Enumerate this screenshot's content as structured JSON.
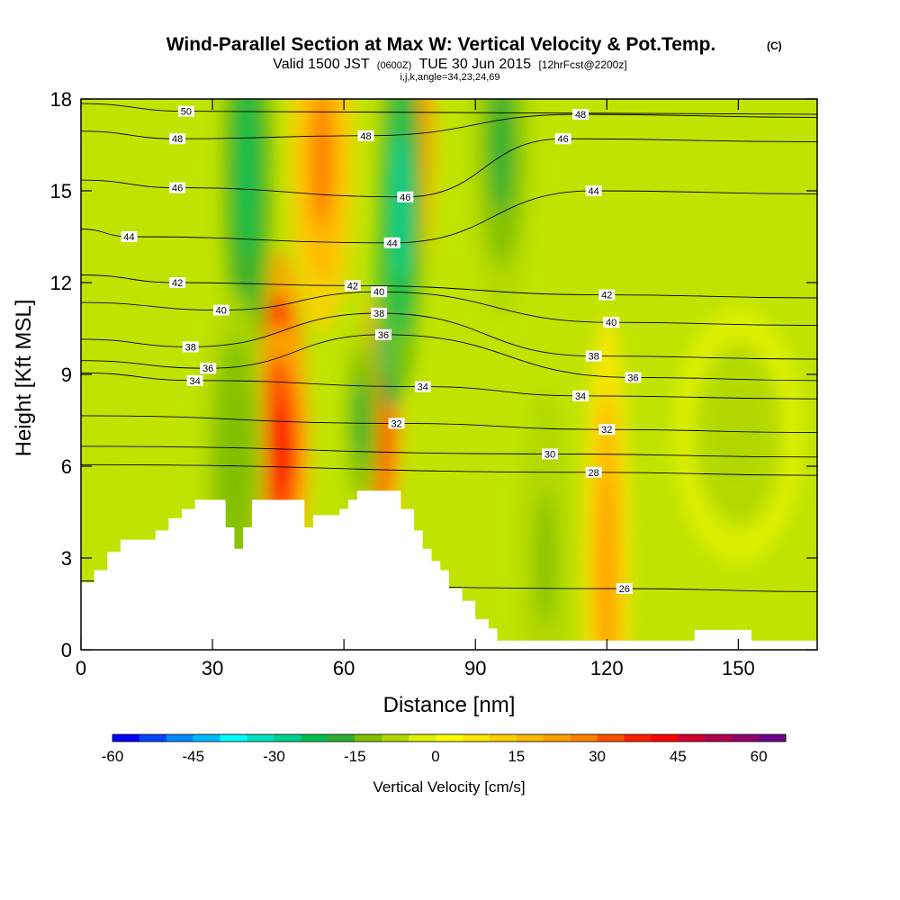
{
  "chart_data": {
    "type": "heatmap",
    "title": "Wind-Parallel Section at Max W: Vertical Velocity & Pot.Temp.",
    "title_mark": "(C)",
    "subtitle_prefix": "Valid 1500 JST",
    "subtitle_zulu": "(0600Z)",
    "subtitle_date": "TUE 30 Jun 2015",
    "subtitle_fcst": "[12hrFcst@2200z]",
    "subtitle_indices": "i,j,k,angle=34,23,24,69",
    "xlabel": "Distance [nm]",
    "ylabel": "Height [Kft MSL]",
    "xlim": [
      0,
      168
    ],
    "ylim": [
      0,
      18
    ],
    "x_ticks": [
      0,
      30,
      60,
      90,
      120,
      150
    ],
    "y_ticks": [
      0,
      3,
      6,
      9,
      12,
      15,
      18
    ],
    "colorbar": {
      "label": "Vertical Velocity [cm/s]",
      "range": [
        -60,
        65
      ],
      "step": 5,
      "tick_values": [
        -60,
        -45,
        -30,
        -15,
        0,
        15,
        30,
        45,
        60
      ],
      "colors": [
        "#0000ff",
        "#0044ff",
        "#0088ff",
        "#00bbff",
        "#00ffff",
        "#00e0c0",
        "#00d090",
        "#00c050",
        "#30b030",
        "#80c000",
        "#b0d800",
        "#e0f000",
        "#ffff00",
        "#ffe800",
        "#ffd000",
        "#ffb800",
        "#ffa000",
        "#ff8000",
        "#ff5000",
        "#ff2000",
        "#ff0000",
        "#d00030",
        "#b00050",
        "#900070",
        "#700090"
      ]
    },
    "theta_contours": {
      "units": "C",
      "labels": [
        {
          "value": 50,
          "x": 24,
          "y": 17.6
        },
        {
          "value": 48,
          "x": 22,
          "y": 16.7
        },
        {
          "value": 48,
          "x": 114,
          "y": 17.5
        },
        {
          "value": 48,
          "x": 65,
          "y": 16.8
        },
        {
          "value": 46,
          "x": 22,
          "y": 15.1
        },
        {
          "value": 46,
          "x": 110,
          "y": 16.7
        },
        {
          "value": 46,
          "x": 74,
          "y": 14.8
        },
        {
          "value": 44,
          "x": 11,
          "y": 13.5
        },
        {
          "value": 44,
          "x": 117,
          "y": 15.0
        },
        {
          "value": 44,
          "x": 71,
          "y": 13.3
        },
        {
          "value": 42,
          "x": 22,
          "y": 12.0
        },
        {
          "value": 42,
          "x": 62,
          "y": 11.9
        },
        {
          "value": 42,
          "x": 120,
          "y": 11.6
        },
        {
          "value": 40,
          "x": 32,
          "y": 11.1
        },
        {
          "value": 40,
          "x": 68,
          "y": 11.7
        },
        {
          "value": 40,
          "x": 121,
          "y": 10.7
        },
        {
          "value": 38,
          "x": 25,
          "y": 9.9
        },
        {
          "value": 38,
          "x": 68,
          "y": 11.0
        },
        {
          "value": 38,
          "x": 117,
          "y": 9.6
        },
        {
          "value": 36,
          "x": 29,
          "y": 9.2
        },
        {
          "value": 36,
          "x": 69,
          "y": 10.3
        },
        {
          "value": 36,
          "x": 126,
          "y": 8.9
        },
        {
          "value": 34,
          "x": 26,
          "y": 8.8
        },
        {
          "value": 34,
          "x": 78,
          "y": 8.6
        },
        {
          "value": 34,
          "x": 114,
          "y": 8.3
        },
        {
          "value": 32,
          "x": 72,
          "y": 7.4
        },
        {
          "value": 32,
          "x": 120,
          "y": 7.2
        },
        {
          "value": 30,
          "x": 107,
          "y": 6.4
        },
        {
          "value": 28,
          "x": 117,
          "y": 5.8
        },
        {
          "value": 26,
          "x": 124,
          "y": 2.0
        }
      ]
    },
    "terrain_height_kft": [
      {
        "x": 0,
        "h": 2.2
      },
      {
        "x": 3,
        "h": 2.6
      },
      {
        "x": 6,
        "h": 3.2
      },
      {
        "x": 9,
        "h": 3.6
      },
      {
        "x": 14,
        "h": 3.6
      },
      {
        "x": 17,
        "h": 3.9
      },
      {
        "x": 20,
        "h": 4.3
      },
      {
        "x": 23,
        "h": 4.6
      },
      {
        "x": 26,
        "h": 4.9
      },
      {
        "x": 31,
        "h": 4.9
      },
      {
        "x": 33,
        "h": 4.0
      },
      {
        "x": 35,
        "h": 3.3
      },
      {
        "x": 37,
        "h": 4.0
      },
      {
        "x": 39,
        "h": 4.9
      },
      {
        "x": 49,
        "h": 4.9
      },
      {
        "x": 51,
        "h": 4.0
      },
      {
        "x": 53,
        "h": 4.4
      },
      {
        "x": 56,
        "h": 4.4
      },
      {
        "x": 59,
        "h": 4.6
      },
      {
        "x": 61,
        "h": 4.9
      },
      {
        "x": 63,
        "h": 5.2
      },
      {
        "x": 70,
        "h": 5.2
      },
      {
        "x": 73,
        "h": 4.6
      },
      {
        "x": 76,
        "h": 3.9
      },
      {
        "x": 78,
        "h": 3.3
      },
      {
        "x": 80,
        "h": 2.9
      },
      {
        "x": 82,
        "h": 2.6
      },
      {
        "x": 84,
        "h": 2.0
      },
      {
        "x": 87,
        "h": 1.6
      },
      {
        "x": 90,
        "h": 1.0
      },
      {
        "x": 93,
        "h": 0.7
      },
      {
        "x": 95,
        "h": 0.3
      },
      {
        "x": 100,
        "h": 0.3
      },
      {
        "x": 139,
        "h": 0.3
      },
      {
        "x": 140,
        "h": 0.65
      },
      {
        "x": 152,
        "h": 0.65
      },
      {
        "x": 153,
        "h": 0.3
      },
      {
        "x": 168,
        "h": 0.3
      }
    ],
    "velocity_cells_cm_s": [
      {
        "x": 45,
        "y": 8.0,
        "w": 55,
        "sx": 2.2,
        "sy": 1.8
      },
      {
        "x": 45,
        "y": 6.5,
        "w": 40,
        "sx": 2.5,
        "sy": 1.5
      },
      {
        "x": 68,
        "y": 7.5,
        "w": 40,
        "sx": 1.8,
        "sy": 1.5
      },
      {
        "x": 75,
        "y": 16.8,
        "w": 38,
        "sx": 2.0,
        "sy": 1.8
      },
      {
        "x": 71,
        "y": 12.0,
        "w": -45,
        "sx": 1.3,
        "sy": 1.5
      },
      {
        "x": 73,
        "y": 14.5,
        "w": -28,
        "sx": 1.8,
        "sy": 2.2
      },
      {
        "x": 38,
        "y": 15.5,
        "w": -25,
        "sx": 2.0,
        "sy": 2.5
      },
      {
        "x": 55,
        "y": 16.0,
        "w": 25,
        "sx": 2.5,
        "sy": 2.0
      },
      {
        "x": 96,
        "y": 16.5,
        "w": -18,
        "sx": 2.5,
        "sy": 2.0
      },
      {
        "x": 35,
        "y": 6.2,
        "w": -15,
        "sx": 2.5,
        "sy": 2.0
      },
      {
        "x": 64,
        "y": 7.5,
        "w": -18,
        "sx": 1.5,
        "sy": 1.2
      },
      {
        "x": 120,
        "y": 2.5,
        "w": 22,
        "sx": 1.8,
        "sy": 3.0
      },
      {
        "x": 106,
        "y": 3.0,
        "w": -12,
        "sx": 2.0,
        "sy": 2.0
      },
      {
        "x": 150,
        "y": 7.0,
        "w": -10,
        "sx": 5.0,
        "sy": 1.5
      }
    ]
  }
}
